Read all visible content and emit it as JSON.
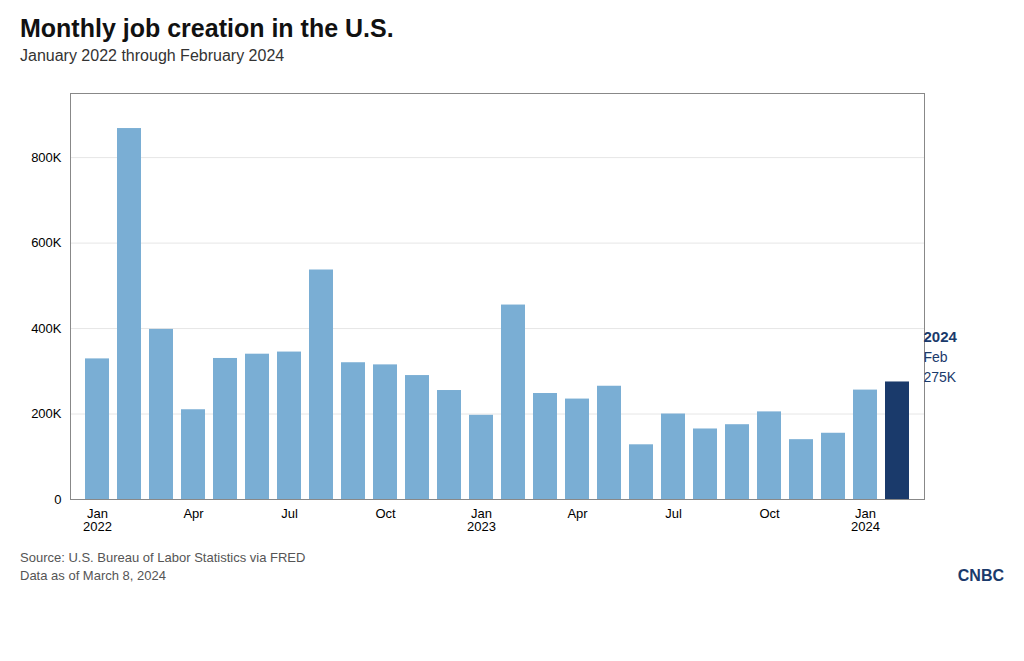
{
  "chart_data": {
    "type": "bar",
    "title": "Monthly job creation in the U.S.",
    "subtitle": "January 2022 through February 2024",
    "source": "Source: U.S. Bureau of Labor Statistics via FRED",
    "note": "Data as of March 8, 2024",
    "logo_text": "CNBC",
    "categories": [
      "Jan\n2022",
      null,
      null,
      "Apr",
      null,
      null,
      "Jul",
      null,
      null,
      "Oct",
      null,
      null,
      "Jan\n2023",
      null,
      null,
      "Apr",
      null,
      null,
      "Jul",
      null,
      null,
      "Oct",
      null,
      null,
      "Jan\n2024",
      null
    ],
    "values": [
      329000,
      868000,
      398000,
      210000,
      330000,
      340000,
      345000,
      537000,
      320000,
      315000,
      290000,
      255000,
      197000,
      455000,
      248000,
      235000,
      265000,
      128000,
      200000,
      165000,
      175000,
      205000,
      140000,
      155000,
      256000,
      275000
    ],
    "colors": [
      "#7aaed4",
      "#7aaed4",
      "#7aaed4",
      "#7aaed4",
      "#7aaed4",
      "#7aaed4",
      "#7aaed4",
      "#7aaed4",
      "#7aaed4",
      "#7aaed4",
      "#7aaed4",
      "#7aaed4",
      "#7aaed4",
      "#7aaed4",
      "#7aaed4",
      "#7aaed4",
      "#7aaed4",
      "#7aaed4",
      "#7aaed4",
      "#7aaed4",
      "#7aaed4",
      "#7aaed4",
      "#7aaed4",
      "#7aaed4",
      "#7aaed4",
      "#1a3a6b"
    ],
    "annotations": [
      {
        "text": "2024",
        "color": "#1a3a6b"
      },
      {
        "text": "Feb",
        "color": "#1a3a6b"
      },
      {
        "text": "275K",
        "color": "#1a3a6b"
      }
    ],
    "ylim": [
      0,
      950000
    ],
    "yticks": [
      0,
      {
        "value": 200000,
        "label": "200K"
      },
      {
        "value": 400000,
        "label": "400K"
      },
      {
        "value": 600000,
        "label": "600K"
      },
      {
        "value": 800000,
        "label": "800K"
      }
    ],
    "grid": true
  }
}
